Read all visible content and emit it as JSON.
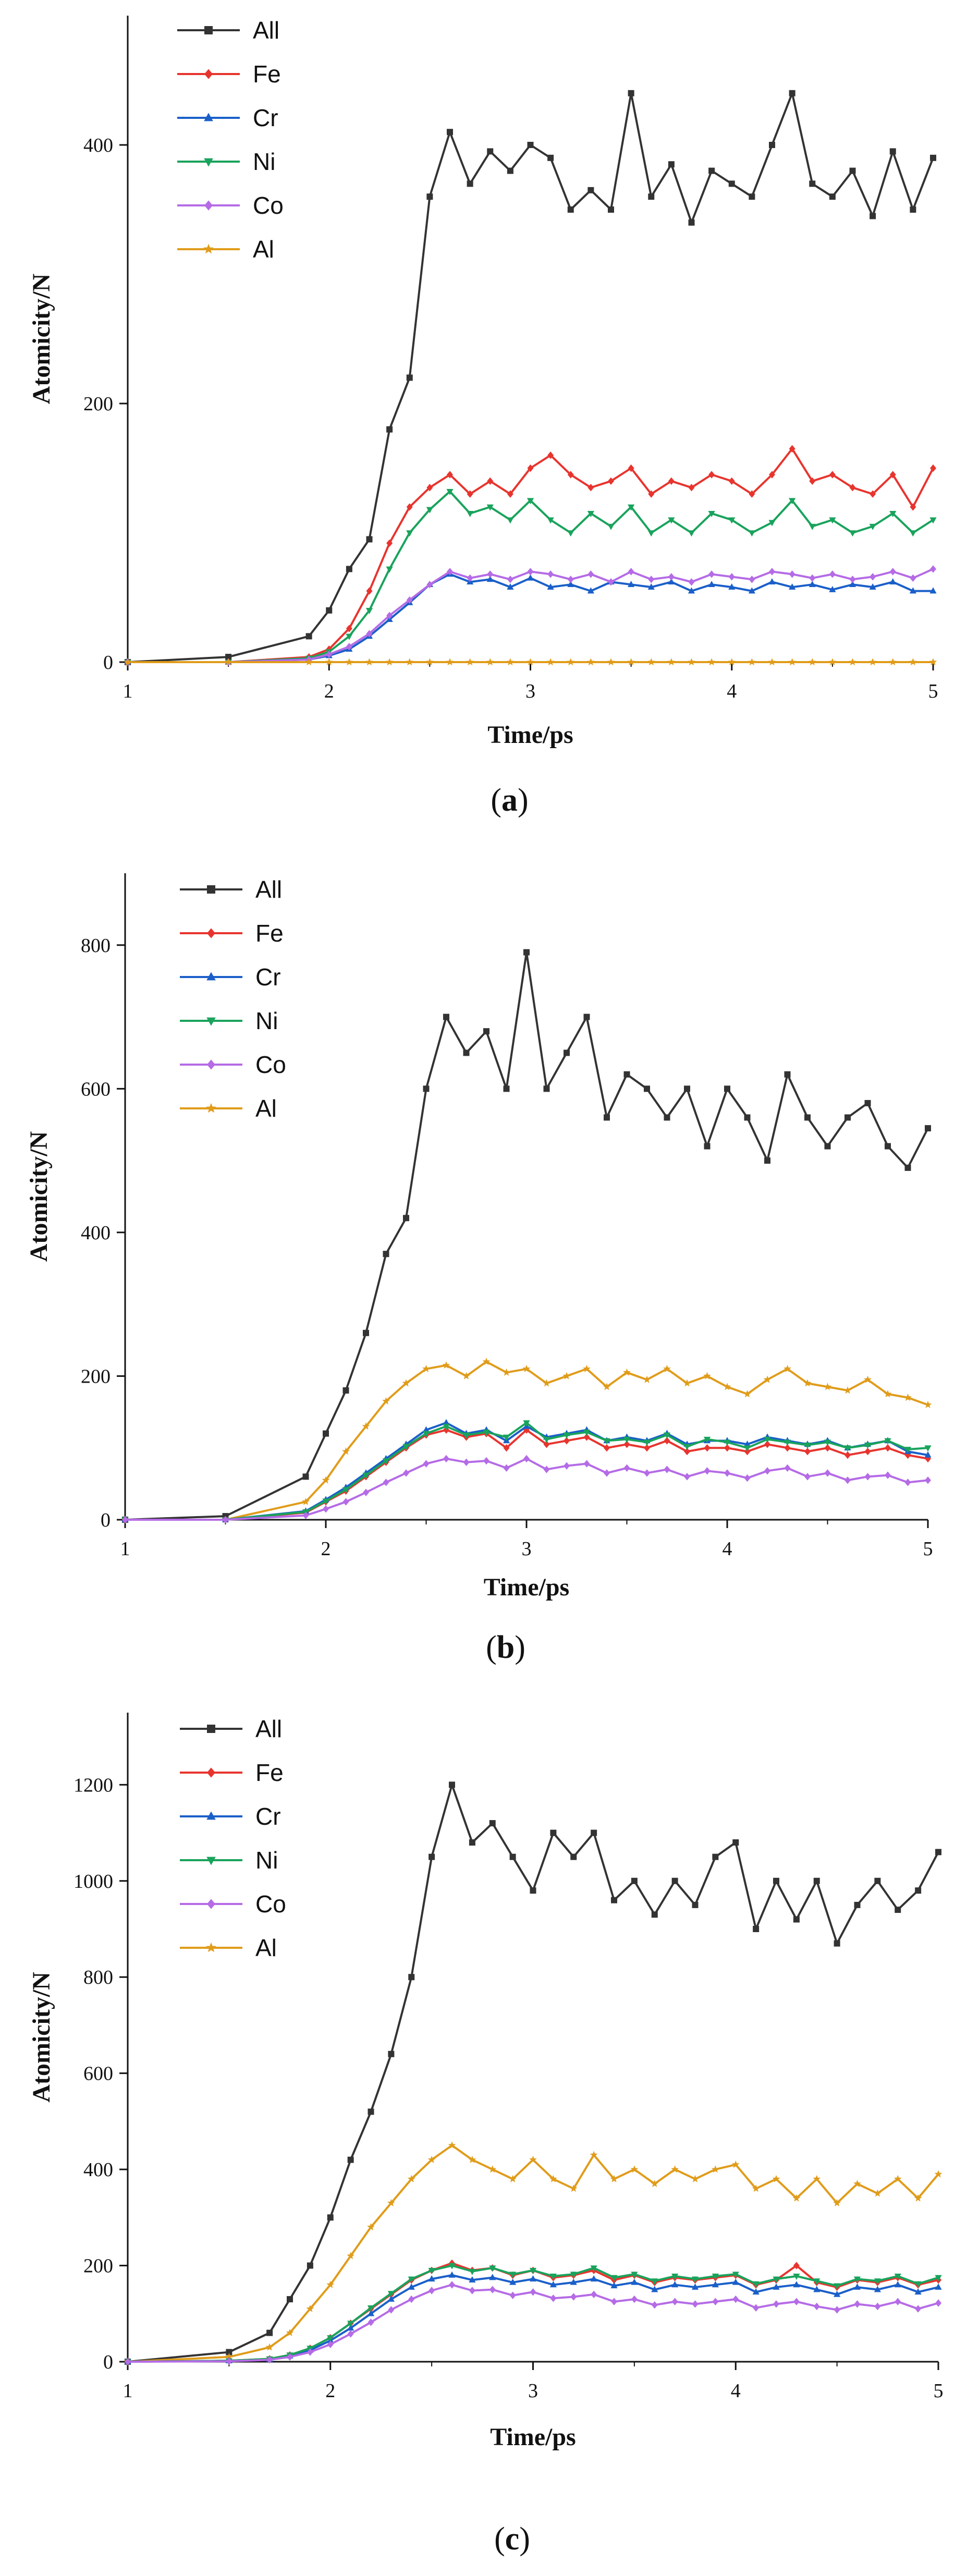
{
  "chart_data": [
    {
      "type": "line",
      "panel_label": "a",
      "xlabel": "Time/ps",
      "ylabel": "Atomicity/N",
      "xlim": [
        1,
        5
      ],
      "ylim": [
        0,
        500
      ],
      "xticks": [
        1,
        2,
        3,
        4,
        5
      ],
      "yticks": [
        0,
        200,
        400
      ],
      "x": [
        1,
        1.5,
        1.9,
        2.0,
        2.1,
        2.2,
        2.3,
        2.4,
        2.5,
        2.6,
        2.7,
        2.8,
        2.9,
        3.0,
        3.1,
        3.2,
        3.3,
        3.4,
        3.5,
        3.6,
        3.7,
        3.8,
        3.9,
        4.0,
        4.1,
        4.2,
        4.3,
        4.4,
        4.5,
        4.6,
        4.7,
        4.8,
        4.9,
        5.0
      ],
      "series": [
        {
          "name": "All",
          "color": "#333333",
          "marker": "square",
          "values": [
            0,
            4,
            20,
            40,
            72,
            95,
            180,
            220,
            360,
            410,
            370,
            395,
            380,
            400,
            390,
            350,
            365,
            350,
            440,
            360,
            385,
            340,
            380,
            370,
            360,
            400,
            440,
            370,
            360,
            380,
            345,
            395,
            350,
            390
          ]
        },
        {
          "name": "Fe",
          "color": "#e8342e",
          "marker": "diamond",
          "values": [
            0,
            0,
            4,
            10,
            26,
            55,
            92,
            120,
            135,
            145,
            130,
            140,
            130,
            150,
            160,
            145,
            135,
            140,
            150,
            130,
            140,
            135,
            145,
            140,
            130,
            145,
            165,
            140,
            145,
            135,
            130,
            145,
            120,
            150
          ]
        },
        {
          "name": "Cr",
          "color": "#1a5fc9",
          "marker": "triangle-up",
          "values": [
            0,
            0,
            2,
            5,
            10,
            20,
            33,
            46,
            60,
            68,
            62,
            64,
            58,
            65,
            58,
            60,
            55,
            62,
            60,
            58,
            62,
            55,
            60,
            58,
            55,
            62,
            58,
            60,
            56,
            60,
            58,
            62,
            55,
            55
          ]
        },
        {
          "name": "Ni",
          "color": "#19a35c",
          "marker": "triangle-down",
          "values": [
            0,
            0,
            3,
            8,
            20,
            40,
            72,
            100,
            118,
            132,
            115,
            120,
            110,
            125,
            110,
            100,
            115,
            105,
            120,
            100,
            110,
            100,
            115,
            110,
            100,
            108,
            125,
            105,
            110,
            100,
            105,
            115,
            100,
            110
          ]
        },
        {
          "name": "Co",
          "color": "#b56be6",
          "marker": "diamond",
          "values": [
            0,
            0,
            2,
            6,
            12,
            22,
            36,
            48,
            60,
            70,
            65,
            68,
            64,
            70,
            68,
            64,
            68,
            62,
            70,
            64,
            66,
            62,
            68,
            66,
            64,
            70,
            68,
            65,
            68,
            64,
            66,
            70,
            65,
            72
          ]
        },
        {
          "name": "Al",
          "color": "#e09c1a",
          "marker": "star",
          "values": [
            0,
            0,
            0,
            0,
            0,
            0,
            0,
            0,
            0,
            0,
            0,
            0,
            0,
            0,
            0,
            0,
            0,
            0,
            0,
            0,
            0,
            0,
            0,
            0,
            0,
            0,
            0,
            0,
            0,
            0,
            0,
            0,
            0,
            0
          ]
        }
      ]
    },
    {
      "type": "line",
      "panel_label": "b",
      "xlabel": "Time/ps",
      "ylabel": "Atomicity/N",
      "xlim": [
        1,
        5
      ],
      "ylim": [
        0,
        900
      ],
      "xticks": [
        1,
        2,
        3,
        4,
        5
      ],
      "yticks": [
        0,
        200,
        400,
        600,
        800
      ],
      "x": [
        1,
        1.5,
        1.9,
        2.0,
        2.1,
        2.2,
        2.3,
        2.4,
        2.5,
        2.6,
        2.7,
        2.8,
        2.9,
        3.0,
        3.1,
        3.2,
        3.3,
        3.4,
        3.5,
        3.6,
        3.7,
        3.8,
        3.9,
        4.0,
        4.1,
        4.2,
        4.3,
        4.4,
        4.5,
        4.6,
        4.7,
        4.8,
        4.9,
        5.0
      ],
      "series": [
        {
          "name": "All",
          "color": "#333333",
          "marker": "square",
          "values": [
            0,
            5,
            60,
            120,
            180,
            260,
            370,
            420,
            600,
            700,
            650,
            680,
            600,
            790,
            600,
            650,
            700,
            560,
            620,
            600,
            560,
            600,
            520,
            600,
            560,
            500,
            620,
            560,
            520,
            560,
            580,
            520,
            490,
            545
          ]
        },
        {
          "name": "Al",
          "color": "#e09c1a",
          "marker": "star",
          "values": [
            0,
            0,
            25,
            55,
            95,
            130,
            165,
            190,
            210,
            215,
            200,
            220,
            205,
            210,
            190,
            200,
            210,
            185,
            205,
            195,
            210,
            190,
            200,
            185,
            175,
            195,
            210,
            190,
            185,
            180,
            195,
            175,
            170,
            160
          ]
        },
        {
          "name": "Fe",
          "color": "#e8342e",
          "marker": "diamond",
          "values": [
            0,
            0,
            10,
            25,
            40,
            60,
            80,
            100,
            118,
            125,
            115,
            120,
            100,
            125,
            105,
            110,
            115,
            100,
            105,
            100,
            110,
            95,
            100,
            100,
            95,
            105,
            100,
            95,
            100,
            90,
            95,
            100,
            90,
            85
          ]
        },
        {
          "name": "Cr",
          "color": "#1a5fc9",
          "marker": "triangle-up",
          "values": [
            0,
            0,
            12,
            28,
            45,
            65,
            85,
            105,
            125,
            135,
            120,
            125,
            110,
            130,
            115,
            120,
            125,
            110,
            115,
            110,
            120,
            105,
            110,
            110,
            105,
            115,
            110,
            105,
            110,
            100,
            105,
            110,
            95,
            90
          ]
        },
        {
          "name": "Ni",
          "color": "#19a35c",
          "marker": "triangle-down",
          "values": [
            0,
            0,
            11,
            26,
            42,
            62,
            82,
            102,
            120,
            130,
            118,
            122,
            115,
            135,
            112,
            118,
            122,
            110,
            112,
            108,
            118,
            102,
            112,
            108,
            100,
            112,
            108,
            104,
            108,
            100,
            104,
            110,
            98,
            100
          ]
        },
        {
          "name": "Co",
          "color": "#b56be6",
          "marker": "diamond",
          "values": [
            0,
            0,
            6,
            15,
            25,
            38,
            52,
            65,
            78,
            85,
            80,
            82,
            72,
            85,
            70,
            75,
            78,
            65,
            72,
            65,
            70,
            60,
            68,
            65,
            58,
            68,
            72,
            60,
            65,
            55,
            60,
            62,
            52,
            55
          ]
        }
      ]
    },
    {
      "type": "line",
      "panel_label": "c",
      "xlabel": "Time/ps",
      "ylabel": "Atomicity/N",
      "xlim": [
        1,
        5
      ],
      "ylim": [
        0,
        1350
      ],
      "xticks": [
        1,
        2,
        3,
        4,
        5
      ],
      "yticks": [
        0,
        200,
        400,
        600,
        800,
        1000,
        1200
      ],
      "x": [
        1,
        1.5,
        1.7,
        1.8,
        1.9,
        2.0,
        2.1,
        2.2,
        2.3,
        2.4,
        2.5,
        2.6,
        2.7,
        2.8,
        2.9,
        3.0,
        3.1,
        3.2,
        3.3,
        3.4,
        3.5,
        3.6,
        3.7,
        3.8,
        3.9,
        4.0,
        4.1,
        4.2,
        4.3,
        4.4,
        4.5,
        4.6,
        4.7,
        4.8,
        4.9,
        5.0
      ],
      "series": [
        {
          "name": "All",
          "color": "#333333",
          "marker": "square",
          "values": [
            0,
            20,
            60,
            130,
            200,
            300,
            420,
            520,
            640,
            800,
            1050,
            1200,
            1080,
            1120,
            1050,
            980,
            1100,
            1050,
            1100,
            960,
            1000,
            930,
            1000,
            950,
            1050,
            1080,
            900,
            1000,
            920,
            1000,
            870,
            950,
            1000,
            940,
            980,
            1060
          ]
        },
        {
          "name": "Al",
          "color": "#e09c1a",
          "marker": "star",
          "values": [
            0,
            10,
            30,
            60,
            110,
            160,
            220,
            280,
            330,
            380,
            420,
            450,
            420,
            400,
            380,
            420,
            380,
            360,
            430,
            380,
            400,
            370,
            400,
            380,
            400,
            410,
            360,
            380,
            340,
            380,
            330,
            370,
            350,
            380,
            340,
            390
          ]
        },
        {
          "name": "Fe",
          "color": "#e8342e",
          "marker": "diamond",
          "values": [
            0,
            2,
            6,
            14,
            28,
            50,
            80,
            110,
            140,
            170,
            190,
            205,
            190,
            195,
            180,
            190,
            175,
            180,
            190,
            170,
            180,
            165,
            175,
            170,
            175,
            180,
            160,
            170,
            200,
            165,
            155,
            170,
            165,
            175,
            160,
            170
          ]
        },
        {
          "name": "Cr",
          "color": "#1a5fc9",
          "marker": "triangle-up",
          "values": [
            0,
            2,
            5,
            12,
            24,
            44,
            70,
            100,
            130,
            155,
            172,
            180,
            170,
            175,
            165,
            172,
            160,
            165,
            172,
            158,
            165,
            150,
            160,
            155,
            160,
            165,
            145,
            155,
            160,
            150,
            140,
            155,
            150,
            160,
            145,
            155
          ]
        },
        {
          "name": "Ni",
          "color": "#19a35c",
          "marker": "triangle-down",
          "values": [
            0,
            2,
            6,
            14,
            28,
            50,
            80,
            112,
            142,
            172,
            190,
            200,
            188,
            195,
            182,
            190,
            178,
            182,
            195,
            175,
            182,
            168,
            178,
            172,
            178,
            182,
            162,
            172,
            178,
            168,
            158,
            172,
            168,
            178,
            162,
            175
          ]
        },
        {
          "name": "Co",
          "color": "#b56be6",
          "marker": "diamond",
          "values": [
            0,
            1,
            4,
            10,
            20,
            36,
            58,
            82,
            108,
            130,
            148,
            160,
            148,
            150,
            138,
            145,
            132,
            135,
            140,
            125,
            130,
            118,
            125,
            120,
            125,
            130,
            112,
            120,
            125,
            115,
            108,
            120,
            115,
            125,
            110,
            122
          ]
        }
      ]
    }
  ]
}
